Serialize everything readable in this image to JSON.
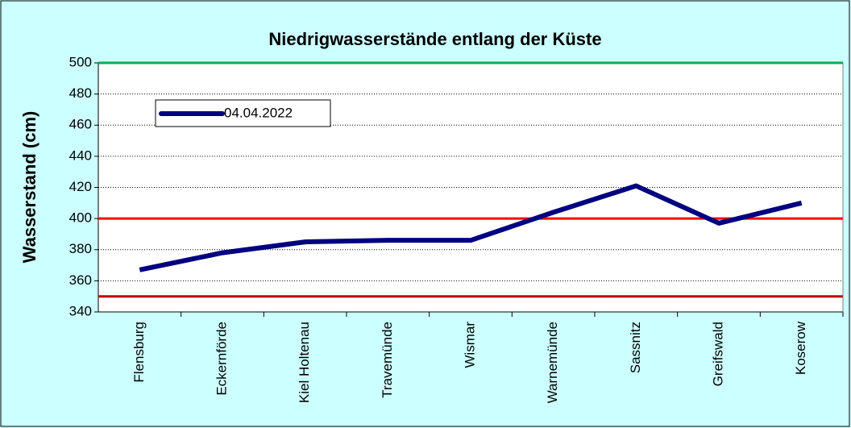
{
  "chart_data": {
    "type": "line",
    "title": "Niedrigwasserstände entlang der Küste",
    "y_label": "Wasserstand (cm)",
    "categories": [
      "Flensburg",
      "Eckernförde",
      "Kiel Holtenau",
      "Travemünde",
      "Wismar",
      "Warnemünde",
      "Sassnitz",
      "Greifswald",
      "Koserow"
    ],
    "series": [
      {
        "name": "04.04.2022",
        "color": "#000080",
        "values": [
          367,
          378,
          385,
          386,
          386,
          404,
          421,
          397,
          410
        ]
      }
    ],
    "reference_lines": [
      {
        "value": 500,
        "color": "#00b050"
      },
      {
        "value": 400,
        "color": "#ff0000"
      },
      {
        "value": 350,
        "color": "#c00000"
      }
    ],
    "ylim": [
      340,
      500
    ],
    "yticks": [
      340,
      360,
      380,
      400,
      420,
      440,
      460,
      480,
      500
    ],
    "grid": true,
    "legend": "upper left"
  }
}
